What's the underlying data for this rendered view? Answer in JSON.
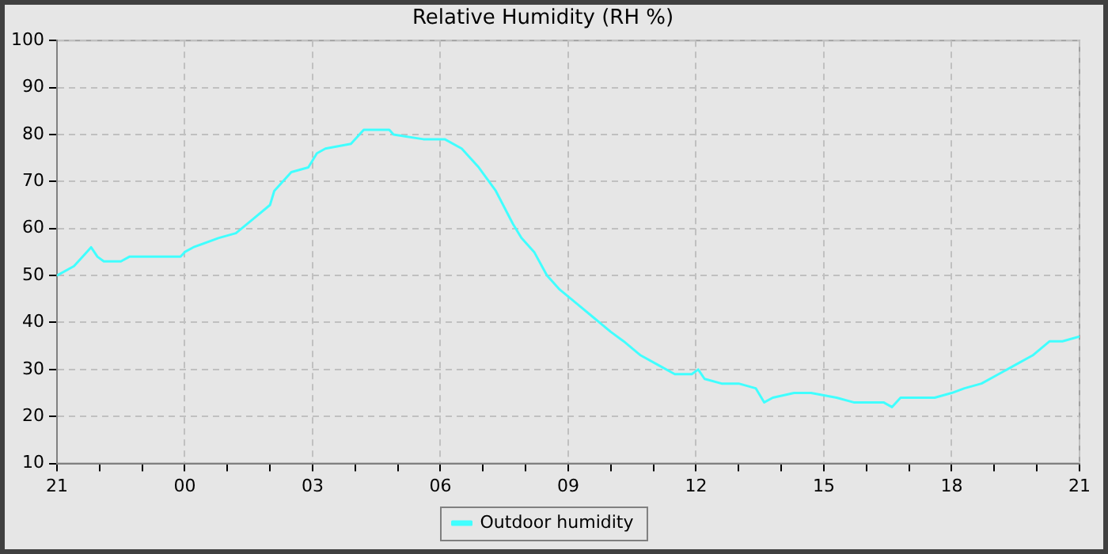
{
  "chart_data": {
    "type": "line",
    "title": "Relative Humidity (RH %)",
    "x": [
      "2000-01-01T21:00",
      "2000-01-01T21:24",
      "2000-01-01T21:42",
      "2000-01-01T21:48",
      "2000-01-01T21:57",
      "2000-01-01T22:06",
      "2000-01-01T22:30",
      "2000-01-01T22:42",
      "2000-01-01T23:54",
      "2000-01-02T00:00",
      "2000-01-02T00:12",
      "2000-01-02T00:48",
      "2000-01-02T01:12",
      "2000-01-02T01:36",
      "2000-01-02T02:00",
      "2000-01-02T02:06",
      "2000-01-02T02:30",
      "2000-01-02T02:54",
      "2000-01-02T03:06",
      "2000-01-02T03:18",
      "2000-01-02T03:54",
      "2000-01-02T04:12",
      "2000-01-02T04:48",
      "2000-01-02T04:54",
      "2000-01-02T05:36",
      "2000-01-02T06:06",
      "2000-01-02T06:30",
      "2000-01-02T06:54",
      "2000-01-02T07:18",
      "2000-01-02T07:42",
      "2000-01-02T07:54",
      "2000-01-02T08:12",
      "2000-01-02T08:30",
      "2000-01-02T08:48",
      "2000-01-02T09:12",
      "2000-01-02T09:36",
      "2000-01-02T10:00",
      "2000-01-02T10:18",
      "2000-01-02T10:42",
      "2000-01-02T11:06",
      "2000-01-02T11:30",
      "2000-01-02T11:54",
      "2000-01-02T12:03",
      "2000-01-02T12:12",
      "2000-01-02T12:36",
      "2000-01-02T13:00",
      "2000-01-02T13:24",
      "2000-01-02T13:36",
      "2000-01-02T13:48",
      "2000-01-02T14:18",
      "2000-01-02T14:42",
      "2000-01-02T15:18",
      "2000-01-02T15:42",
      "2000-01-02T16:24",
      "2000-01-02T16:36",
      "2000-01-02T16:48",
      "2000-01-02T17:12",
      "2000-01-02T17:36",
      "2000-01-02T18:00",
      "2000-01-02T18:18",
      "2000-01-02T18:42",
      "2000-01-02T19:06",
      "2000-01-02T19:30",
      "2000-01-02T19:54",
      "2000-01-02T20:18",
      "2000-01-02T20:36",
      "2000-01-02T21:00"
    ],
    "series": [
      {
        "name": "Outdoor humidity",
        "color": "#40ffff",
        "values": [
          50,
          52,
          55,
          56,
          54,
          53,
          53,
          54,
          54,
          55,
          56,
          58,
          59,
          62,
          65,
          68,
          72,
          73,
          76,
          77,
          78,
          81,
          81,
          80,
          79,
          79,
          77,
          73,
          68,
          61,
          58,
          55,
          50,
          47,
          44,
          41,
          38,
          36,
          33,
          31,
          29,
          29,
          30,
          28,
          27,
          27,
          26,
          23,
          24,
          25,
          25,
          24,
          23,
          23,
          22,
          24,
          24,
          24,
          25,
          26,
          27,
          29,
          31,
          33,
          36,
          36,
          37
        ]
      }
    ],
    "xlim": [
      "2000-01-01T21:00",
      "2000-01-02T21:00"
    ],
    "xticks": [
      {
        "value": "2000-01-01T21:00",
        "label": "21"
      },
      {
        "value": "2000-01-01T22:00",
        "label": null
      },
      {
        "value": "2000-01-01T23:00",
        "label": null
      },
      {
        "value": "2000-01-02T00:00",
        "label": "00"
      },
      {
        "value": "2000-01-02T01:00",
        "label": null
      },
      {
        "value": "2000-01-02T02:00",
        "label": null
      },
      {
        "value": "2000-01-02T03:00",
        "label": "03"
      },
      {
        "value": "2000-01-02T04:00",
        "label": null
      },
      {
        "value": "2000-01-02T05:00",
        "label": null
      },
      {
        "value": "2000-01-02T06:00",
        "label": "06"
      },
      {
        "value": "2000-01-02T07:00",
        "label": null
      },
      {
        "value": "2000-01-02T08:00",
        "label": null
      },
      {
        "value": "2000-01-02T09:00",
        "label": "09"
      },
      {
        "value": "2000-01-02T10:00",
        "label": null
      },
      {
        "value": "2000-01-02T11:00",
        "label": null
      },
      {
        "value": "2000-01-02T12:00",
        "label": "12"
      },
      {
        "value": "2000-01-02T13:00",
        "label": null
      },
      {
        "value": "2000-01-02T14:00",
        "label": null
      },
      {
        "value": "2000-01-02T15:00",
        "label": "15"
      },
      {
        "value": "2000-01-02T16:00",
        "label": null
      },
      {
        "value": "2000-01-02T17:00",
        "label": null
      },
      {
        "value": "2000-01-02T18:00",
        "label": "18"
      },
      {
        "value": "2000-01-02T19:00",
        "label": null
      },
      {
        "value": "2000-01-02T20:00",
        "label": null
      },
      {
        "value": "2000-01-02T21:00",
        "label": "21"
      }
    ],
    "ylim": [
      10,
      100
    ],
    "yticks": [
      10,
      20,
      30,
      40,
      50,
      60,
      70,
      80,
      90,
      100
    ],
    "grid": true,
    "legend": "bottom",
    "marker": "none",
    "line_style": "solid"
  }
}
